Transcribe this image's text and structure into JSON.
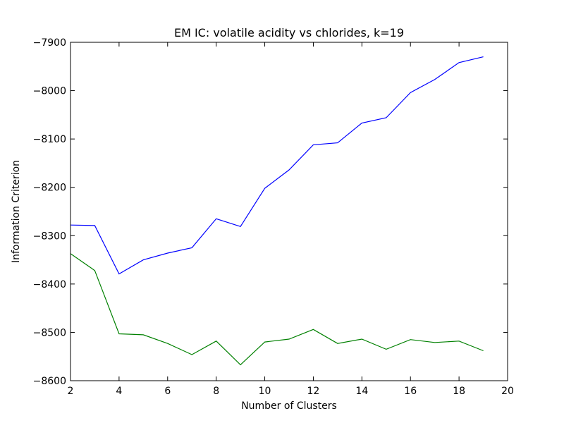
{
  "chart_data": {
    "type": "line",
    "title": "EM IC: volatile acidity vs chlorides, k=19",
    "xlabel": "Number of Clusters",
    "ylabel": "Information Criterion",
    "xlim": [
      2,
      20
    ],
    "ylim": [
      -8600,
      -7900
    ],
    "xticks": [
      2,
      4,
      6,
      8,
      10,
      12,
      14,
      16,
      18,
      20
    ],
    "yticks": [
      -7900,
      -8000,
      -8100,
      -8200,
      -8300,
      -8400,
      -8500,
      -8600
    ],
    "ytick_labels": [
      "−7900",
      "−8000",
      "−8100",
      "−8200",
      "−8300",
      "−8400",
      "−8500",
      "−8600"
    ],
    "grid": false,
    "x": [
      2,
      3,
      4,
      5,
      6,
      7,
      8,
      9,
      10,
      11,
      12,
      13,
      14,
      15,
      16,
      17,
      18,
      19
    ],
    "series": [
      {
        "color": "#0000ff",
        "values": [
          -8278,
          -8279,
          -8379,
          -8350,
          -8336,
          -8325,
          -8265,
          -8281,
          -8202,
          -8164,
          -8112,
          -8108,
          -8067,
          -8056,
          -8004,
          -7977,
          -7942,
          -7930
        ]
      },
      {
        "color": "#008000",
        "values": [
          -8337,
          -8372,
          -8503,
          -8505,
          -8523,
          -8546,
          -8518,
          -8567,
          -8520,
          -8514,
          -8494,
          -8523,
          -8514,
          -8535,
          -8515,
          -8521,
          -8518,
          -8538
        ]
      }
    ]
  }
}
